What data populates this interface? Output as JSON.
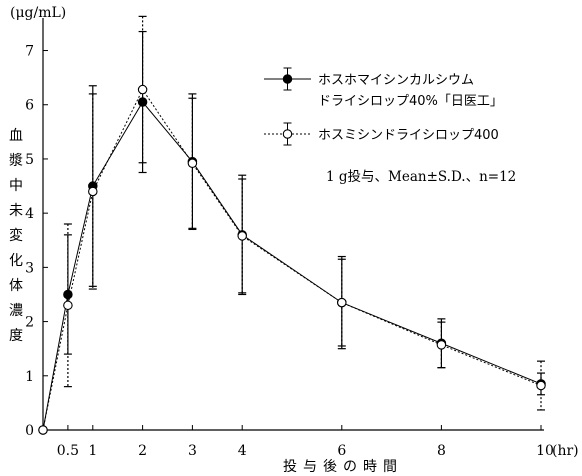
{
  "chart_data": {
    "type": "line",
    "unit": "(μg/mL)",
    "ylabel": "血漿中未変化体濃度",
    "xlabel": "投与後の時間",
    "x_unit": "(hr)",
    "x_ticks": [
      {
        "value": 0.5,
        "label": "0.5"
      },
      {
        "value": 1,
        "label": "1"
      },
      {
        "value": 2,
        "label": "2"
      },
      {
        "value": 3,
        "label": "3"
      },
      {
        "value": 4,
        "label": "4"
      },
      {
        "value": 6,
        "label": "6"
      },
      {
        "value": 8,
        "label": "8"
      },
      {
        "value": 10,
        "label": "10"
      }
    ],
    "y_ticks": [
      "0",
      "1",
      "2",
      "3",
      "4",
      "5",
      "6",
      "7"
    ],
    "xlim": [
      0,
      10
    ],
    "ylim": [
      0,
      7.6
    ],
    "series": [
      {
        "name": "ホスホマイシンカルシウムドライシロップ40%「日医工」",
        "legend_lines": [
          "ホスホマイシンカルシウム",
          "ドライシロップ40%「日医工」"
        ],
        "marker": "filled-circle",
        "line": "solid",
        "x": [
          0,
          0.5,
          1,
          2,
          3,
          4,
          6,
          8,
          10
        ],
        "y": [
          0,
          2.5,
          4.5,
          6.05,
          4.95,
          3.6,
          2.35,
          1.6,
          0.85
        ],
        "sd": [
          0,
          1.1,
          1.85,
          1.3,
          1.25,
          1.1,
          0.85,
          0.45,
          0.2
        ]
      },
      {
        "name": "ホスミシンドライシロップ400",
        "legend_lines": [
          "ホスミシンドライシロップ400"
        ],
        "marker": "open-circle",
        "line": "dotted",
        "x": [
          0,
          0.5,
          1,
          2,
          3,
          4,
          6,
          8,
          10
        ],
        "y": [
          0,
          2.3,
          4.4,
          6.28,
          4.92,
          3.58,
          2.35,
          1.57,
          0.82
        ],
        "sd": [
          0,
          1.5,
          1.8,
          1.35,
          1.2,
          1.05,
          0.8,
          0.42,
          0.45
        ]
      }
    ],
    "annotation": "1 g投与、Mean±S.D.、n=12",
    "legend_position": "top-right"
  }
}
